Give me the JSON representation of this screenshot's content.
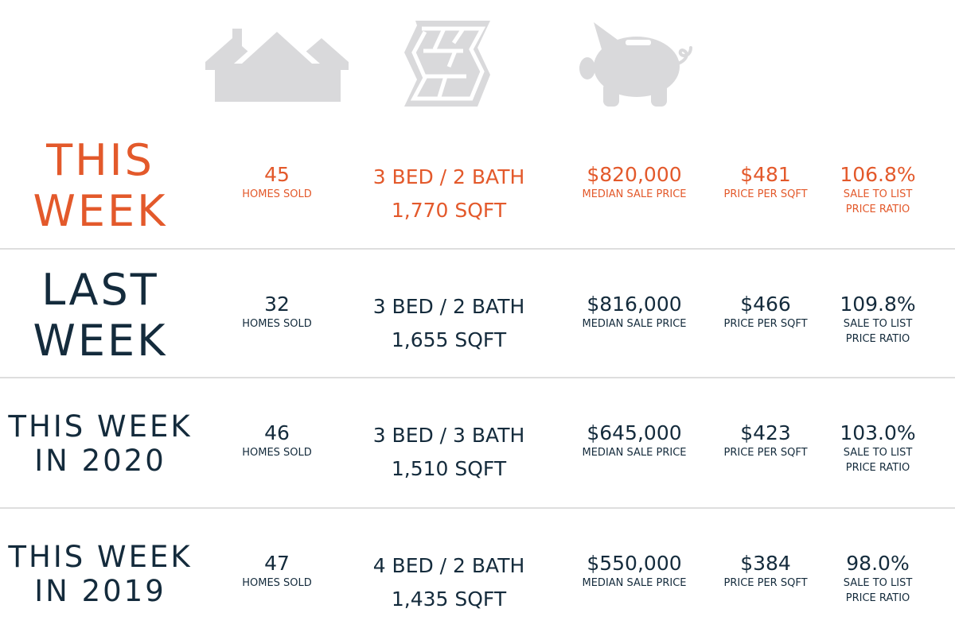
{
  "colors": {
    "current": "#e3592b",
    "past": "#142b3c",
    "icon": "#d9d9db",
    "divider": "#dedede"
  },
  "icons": [
    "houses-icon",
    "floor-plan-icon",
    "piggy-bank-icon"
  ],
  "rows": [
    {
      "period_lines": [
        "THIS",
        "WEEK"
      ],
      "homes_sold": "45",
      "homes_sold_label": "HOMES SOLD",
      "beds_baths": "3 BED / 2 BATH",
      "sqft": "1,770 SQFT",
      "median_price": "$820,000",
      "median_price_label": "MEDIAN SALE PRICE",
      "price_per_sqft": "$481",
      "price_per_sqft_label": "PRICE PER SQFT",
      "sale_to_list": "106.8%",
      "sale_to_list_label_1": "SALE TO LIST",
      "sale_to_list_label_2": "PRICE RATIO"
    },
    {
      "period_lines": [
        "LAST",
        "WEEK"
      ],
      "homes_sold": "32",
      "homes_sold_label": "HOMES SOLD",
      "beds_baths": "3 BED / 2 BATH",
      "sqft": "1,655 SQFT",
      "median_price": "$816,000",
      "median_price_label": "MEDIAN SALE PRICE",
      "price_per_sqft": "$466",
      "price_per_sqft_label": "PRICE PER SQFT",
      "sale_to_list": "109.8%",
      "sale_to_list_label_1": "SALE TO LIST",
      "sale_to_list_label_2": "PRICE RATIO"
    },
    {
      "period_lines": [
        "THIS WEEK",
        "IN 2020"
      ],
      "homes_sold": "46",
      "homes_sold_label": "HOMES SOLD",
      "beds_baths": "3 BED / 3 BATH",
      "sqft": "1,510 SQFT",
      "median_price": "$645,000",
      "median_price_label": "MEDIAN SALE PRICE",
      "price_per_sqft": "$423",
      "price_per_sqft_label": "PRICE PER SQFT",
      "sale_to_list": "103.0%",
      "sale_to_list_label_1": "SALE TO LIST",
      "sale_to_list_label_2": "PRICE RATIO"
    },
    {
      "period_lines": [
        "THIS WEEK",
        "IN 2019"
      ],
      "homes_sold": "47",
      "homes_sold_label": "HOMES SOLD",
      "beds_baths": "4 BED / 2 BATH",
      "sqft": "1,435 SQFT",
      "median_price": "$550,000",
      "median_price_label": "MEDIAN SALE PRICE",
      "price_per_sqft": "$384",
      "price_per_sqft_label": "PRICE PER SQFT",
      "sale_to_list": "98.0%",
      "sale_to_list_label_1": "SALE TO LIST",
      "sale_to_list_label_2": "PRICE RATIO"
    }
  ]
}
